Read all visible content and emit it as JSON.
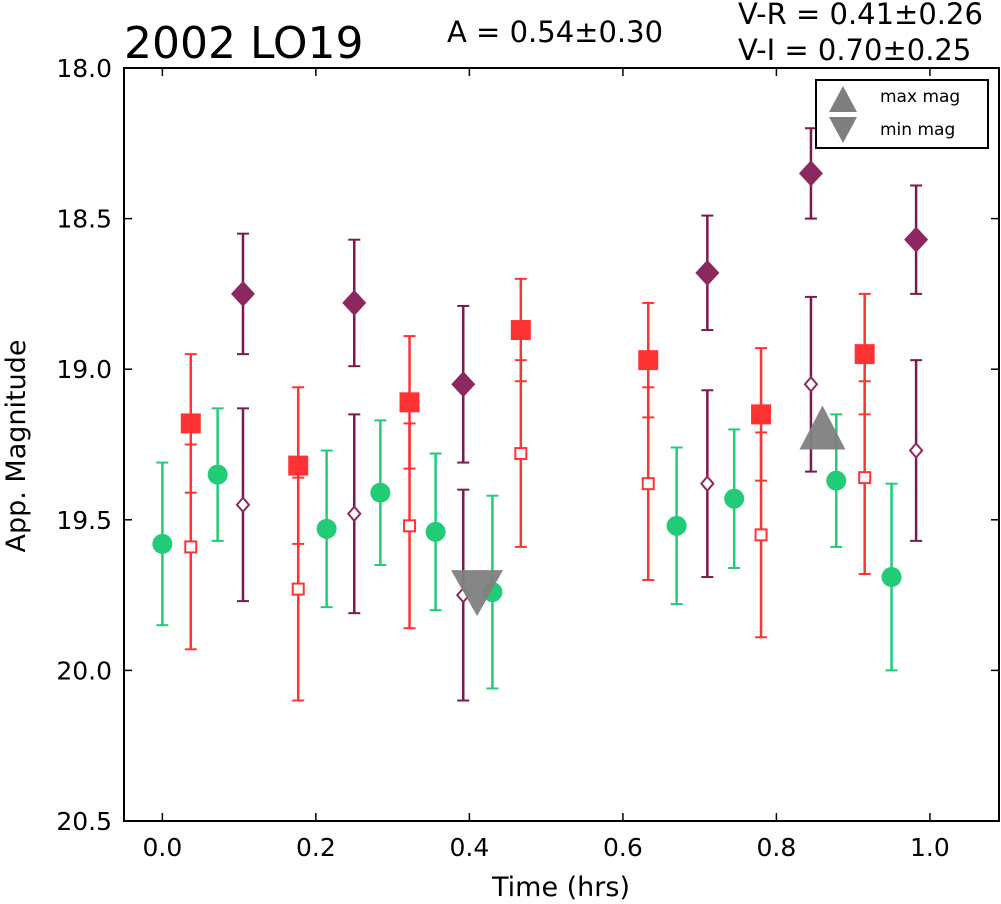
{
  "chart_data": {
    "type": "scatter",
    "title": "2002 LO19",
    "annotations": {
      "amplitude": "A  = 0.54±0.30",
      "vr": "V-R = 0.41±0.26",
      "vi": "V-I  = 0.70±0.25"
    },
    "xlabel": "Time (hrs)",
    "ylabel": "App. Magnitude",
    "xlim": [
      -0.05,
      1.09
    ],
    "ylim": [
      20.5,
      18.0
    ],
    "y_inverted": true,
    "grid": false,
    "x_ticks": [
      "0.0",
      "0.2",
      "0.4",
      "0.6",
      "0.8",
      "1.0"
    ],
    "y_ticks": [
      "18.0",
      "18.5",
      "19.0",
      "19.5",
      "20.0",
      "20.5"
    ],
    "legend": {
      "placement": "top-right",
      "entries": [
        {
          "label": "max mag",
          "marker": "triangle-up"
        },
        {
          "label": "min mag",
          "marker": "triangle-down"
        }
      ]
    },
    "colors": {
      "green": "#22cc77",
      "red": "#ff3333",
      "purple": "#8b2860",
      "purple_err": "#7a1b4f",
      "gray": "#7f7f7f"
    },
    "series": [
      {
        "marker": "circle",
        "color": "#22cc77",
        "points": [
          {
            "x": 0.0,
            "y": 19.58,
            "err": 0.27
          },
          {
            "x": 0.072,
            "y": 19.35,
            "err": 0.22
          },
          {
            "x": 0.214,
            "y": 19.53,
            "err": 0.26
          },
          {
            "x": 0.284,
            "y": 19.41,
            "err": 0.24
          },
          {
            "x": 0.356,
            "y": 19.54,
            "err": 0.26
          },
          {
            "x": 0.43,
            "y": 19.74,
            "err": 0.32
          },
          {
            "x": 0.67,
            "y": 19.52,
            "err": 0.26
          },
          {
            "x": 0.745,
            "y": 19.43,
            "err": 0.23
          },
          {
            "x": 0.878,
            "y": 19.37,
            "err": 0.22
          },
          {
            "x": 0.95,
            "y": 19.69,
            "err": 0.31
          }
        ]
      },
      {
        "marker": "square-filled",
        "color": "#ff3333",
        "points": [
          {
            "x": 0.037,
            "y": 19.18,
            "err": 0.23
          },
          {
            "x": 0.177,
            "y": 19.32,
            "err": 0.26
          },
          {
            "x": 0.322,
            "y": 19.11,
            "err": 0.22
          },
          {
            "x": 0.467,
            "y": 18.87,
            "err": 0.17
          },
          {
            "x": 0.633,
            "y": 18.97,
            "err": 0.19
          },
          {
            "x": 0.78,
            "y": 19.15,
            "err": 0.22
          },
          {
            "x": 0.915,
            "y": 18.95,
            "err": 0.2
          }
        ]
      },
      {
        "marker": "square-open",
        "color": "#ff3333",
        "points": [
          {
            "x": 0.037,
            "y": 19.59,
            "err": 0.34
          },
          {
            "x": 0.177,
            "y": 19.73,
            "err": 0.37
          },
          {
            "x": 0.322,
            "y": 19.52,
            "err": 0.34
          },
          {
            "x": 0.467,
            "y": 19.28,
            "err": 0.31
          },
          {
            "x": 0.633,
            "y": 19.38,
            "err": 0.32
          },
          {
            "x": 0.78,
            "y": 19.55,
            "err": 0.34
          },
          {
            "x": 0.915,
            "y": 19.36,
            "err": 0.32
          }
        ]
      },
      {
        "marker": "diamond-filled",
        "color": "#8b2860",
        "points": [
          {
            "x": 0.105,
            "y": 18.75,
            "err": 0.2
          },
          {
            "x": 0.25,
            "y": 18.78,
            "err": 0.21
          },
          {
            "x": 0.392,
            "y": 19.05,
            "err": 0.26
          },
          {
            "x": 0.71,
            "y": 18.68,
            "err": 0.19
          },
          {
            "x": 0.845,
            "y": 18.35,
            "err": 0.15
          },
          {
            "x": 0.982,
            "y": 18.57,
            "err": 0.18
          }
        ]
      },
      {
        "marker": "diamond-open",
        "color": "#8b2860",
        "points": [
          {
            "x": 0.105,
            "y": 19.45,
            "err": 0.32
          },
          {
            "x": 0.25,
            "y": 19.48,
            "err": 0.33
          },
          {
            "x": 0.392,
            "y": 19.75,
            "err": 0.35
          },
          {
            "x": 0.71,
            "y": 19.38,
            "err": 0.31
          },
          {
            "x": 0.845,
            "y": 19.05,
            "err": 0.29
          },
          {
            "x": 0.982,
            "y": 19.27,
            "err": 0.3
          }
        ]
      },
      {
        "name": "max mag",
        "marker": "triangle-up",
        "color": "#7f7f7f",
        "points": [
          {
            "x": 0.86,
            "y": 19.22
          }
        ]
      },
      {
        "name": "min mag",
        "marker": "triangle-down",
        "color": "#7f7f7f",
        "points": [
          {
            "x": 0.41,
            "y": 19.74
          }
        ]
      }
    ]
  }
}
